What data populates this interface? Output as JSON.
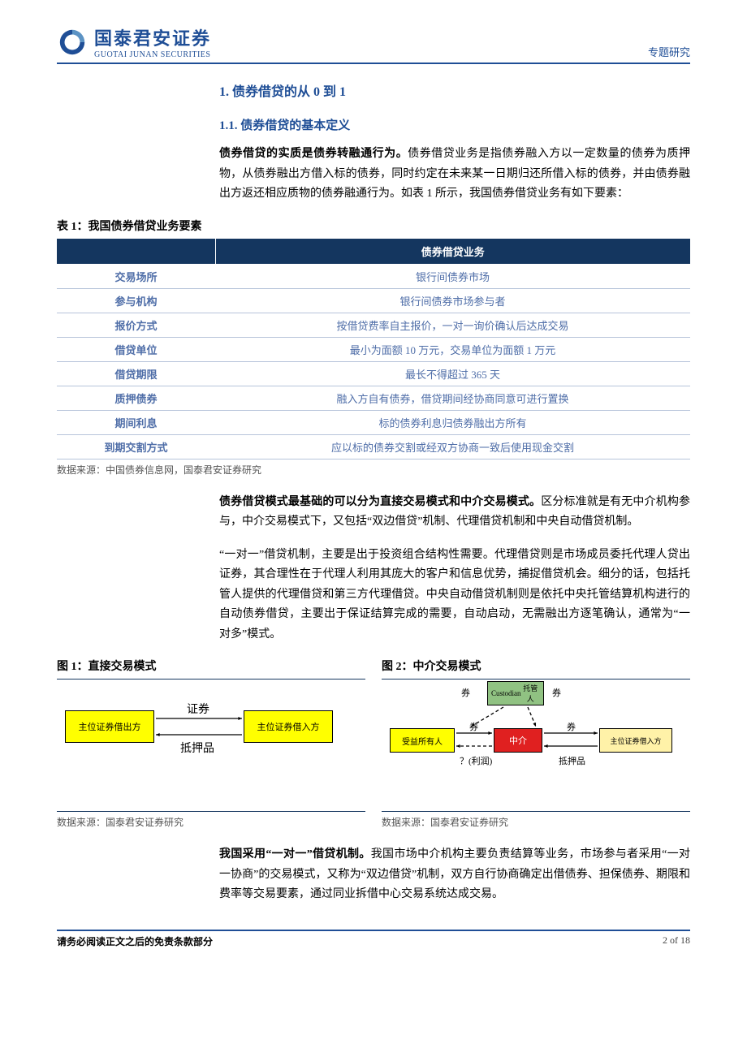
{
  "colors": {
    "accent_blue": "#1f4e96",
    "line": "#1f4e96",
    "table_header_bg": "#14365f",
    "table_label": "#4f6ea8",
    "table_row_border": "#b7c4da",
    "fig_yellow": "#ffff00",
    "fig_green": "#90c282",
    "fig_red": "#e02020",
    "fig_small_yellow": "#fff2a8"
  },
  "header": {
    "company_cn": "国泰君安证券",
    "company_en": "GUOTAI JUNAN SECURITIES",
    "tag": "专题研究"
  },
  "section": {
    "title": "1.  债券借贷的从 0 到 1",
    "sub1": "1.1. 债券借贷的基本定义"
  },
  "para1_bold": "债券借贷的实质是债券转融通行为。",
  "para1_rest": "债券借贷业务是指债券融入方以一定数量的债券为质押物，从债券融出方借入标的债券，同时约定在未来某一日期归还所借入标的债券，并由债券融出方返还相应质物的债券融通行为。如表 1 所示，我国债券借贷业务有如下要素：",
  "table1": {
    "caption": "表 1：我国债券借贷业务要素",
    "header_right": "债券借贷业务",
    "rows": [
      {
        "label": "交易场所",
        "value": "银行间债券市场"
      },
      {
        "label": "参与机构",
        "value": "银行间债券市场参与者"
      },
      {
        "label": "报价方式",
        "value": "按借贷费率自主报价，一对一询价确认后达成交易"
      },
      {
        "label": "借贷单位",
        "value": "最小为面额 10 万元，交易单位为面额 1 万元"
      },
      {
        "label": "借贷期限",
        "value": "最长不得超过 365 天"
      },
      {
        "label": "质押债券",
        "value": "融入方自有债券，借贷期间经协商同意可进行置换"
      },
      {
        "label": "期间利息",
        "value": "标的债券利息归债券融出方所有"
      },
      {
        "label": "到期交割方式",
        "value": "应以标的债券交割或经双方协商一致后使用现金交割"
      }
    ],
    "source": "数据来源：中国债券信息网，国泰君安证券研究"
  },
  "para2_bold": "债券借贷模式最基础的可以分为直接交易模式和中介交易模式。",
  "para2_rest": "区分标准就是有无中介机构参与，中介交易模式下，又包括“双边借贷”机制、代理借贷机制和中央自动借贷机制。",
  "para3": "“一对一”借贷机制，主要是出于投资组合结构性需要。代理借贷则是市场成员委托代理人贷出证券，其合理性在于代理人利用其庞大的客户和信息优势，捕捉借贷机会。细分的话，包括托管人提供的代理借贷和第三方代理借贷。中央自动借贷机制则是依托中央托管结算机构进行的自动债券借贷，主要出于保证结算完成的需要，自动启动，无需融出方逐笔确认，通常为“一对多”模式。",
  "fig1": {
    "caption": "图 1：直接交易模式",
    "box_left": "主位证券借出方",
    "box_right": "主位证券借入方",
    "arrow_top": "证券",
    "arrow_bottom": "抵押品",
    "source": "数据来源：国泰君安证券研究"
  },
  "fig2": {
    "caption": "图 2：中介交易模式",
    "custodian_en": "Custodian",
    "custodian_cn": "托管人",
    "box_left": "受益所有人",
    "box_mid": "中介",
    "box_right": "主位证券借入方",
    "label_quan": "券",
    "label_bottom_q": "？(利润)",
    "label_collateral": "抵押品",
    "source": "数据来源：国泰君安证券研究"
  },
  "para4_bold": "我国采用“一对一”借贷机制。",
  "para4_rest": "我国市场中介机构主要负责结算等业务，市场参与者采用“一对一协商”的交易模式，又称为“双边借贷”机制，双方自行协商确定出借债券、担保债券、期限和费率等交易要素，通过同业拆借中心交易系统达成交易。",
  "footer": {
    "left": "请务必阅读正文之后的免责条款部分",
    "right": "2 of 18"
  }
}
